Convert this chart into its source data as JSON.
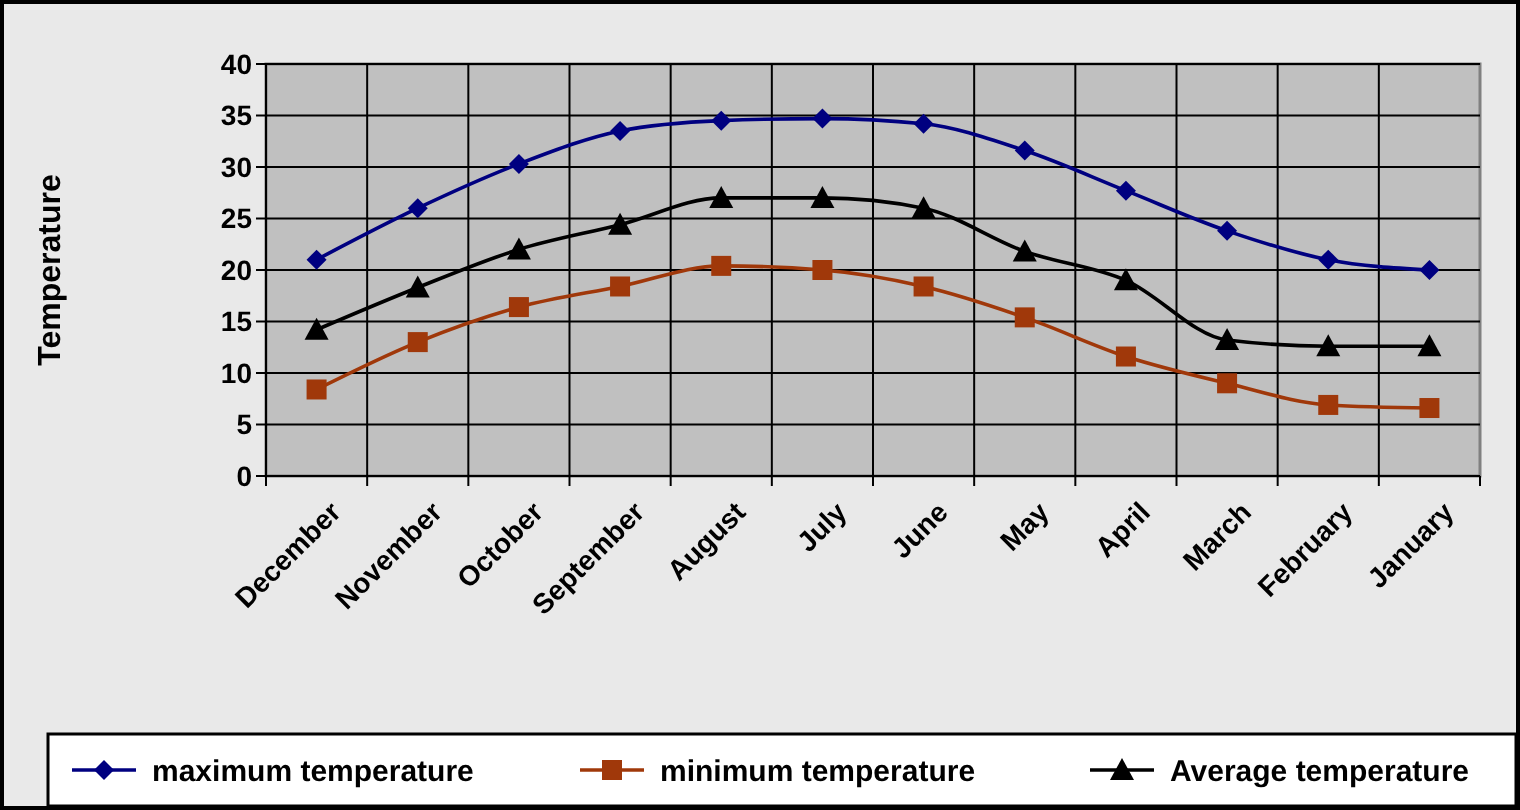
{
  "chart_data": {
    "type": "line",
    "ylabel": "Temperature",
    "categories": [
      "December",
      "November",
      "October",
      "September",
      "August",
      "July",
      "June",
      "May",
      "April",
      "March",
      "February",
      "January"
    ],
    "series": [
      {
        "name": "maximum temperature",
        "color": "#000080",
        "marker": "diamond",
        "values": [
          21,
          26,
          30.3,
          33.5,
          34.5,
          34.7,
          34.2,
          31.6,
          27.7,
          23.8,
          21,
          20
        ]
      },
      {
        "name": "minimum temperature",
        "color": "#a0380a",
        "marker": "square",
        "values": [
          8.4,
          13,
          16.4,
          18.4,
          20.4,
          20,
          18.4,
          15.4,
          11.6,
          9,
          6.9,
          6.6
        ]
      },
      {
        "name": "Average temperature",
        "color": "#000000",
        "marker": "triangle",
        "values": [
          14.2,
          18.3,
          22,
          24.4,
          27,
          27,
          26,
          21.8,
          19,
          13.2,
          12.6,
          12.6
        ]
      }
    ],
    "ylim": [
      0,
      40
    ],
    "yticks": [
      0,
      5,
      10,
      15,
      20,
      25,
      30,
      35,
      40
    ],
    "grid": true,
    "legend": "bottom",
    "line_style": "solid"
  }
}
